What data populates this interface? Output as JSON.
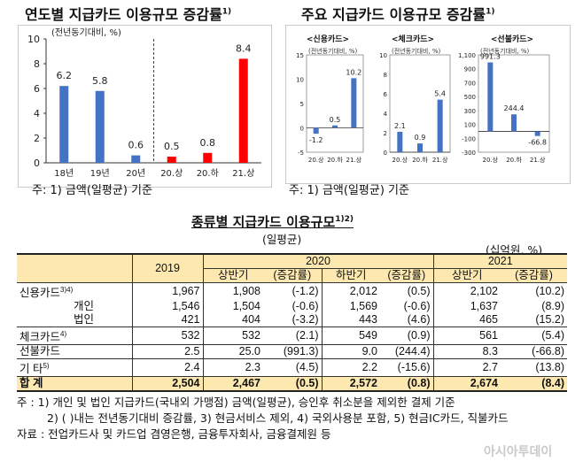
{
  "colors": {
    "blue": "#4472c4",
    "red": "#ff0000",
    "header_bg": "#fde9b0"
  },
  "left_chart": {
    "title": "연도별 지급카드 이용규모 증감률",
    "title_sup": "1)",
    "unit": "(전년동기대비, %)",
    "footnote": "주: 1) 금액(일평균) 기준"
  },
  "right_panel": {
    "title": "주요 지급카드 이용규모 증감률",
    "title_sup": "1)",
    "footnote": "주: 1) 금액(일평균) 기준",
    "unit": "(전년동기대비, %)"
  },
  "chart_data": [
    {
      "type": "bar",
      "title": "연도별 지급카드 이용규모 증감률",
      "categories": [
        "18년",
        "19년",
        "20년",
        "20.상",
        "20.하",
        "21.상"
      ],
      "values": [
        6.2,
        5.8,
        0.6,
        0.5,
        0.8,
        8.4
      ],
      "value_labels": [
        "6.2",
        "5.8",
        "0.6",
        "0.5",
        "0.8",
        "8.4"
      ],
      "bar_colors": [
        "#4472c4",
        "#4472c4",
        "#4472c4",
        "#ff0000",
        "#ff0000",
        "#ff0000"
      ],
      "ylim": [
        0,
        10
      ],
      "yticks": [
        "0",
        "2",
        "4",
        "6",
        "8",
        "10"
      ],
      "grid": false
    },
    {
      "type": "bar",
      "title": "<신용카드>",
      "categories": [
        "20.상",
        "20.하",
        "21.상"
      ],
      "values": [
        -1.2,
        0.5,
        10.2
      ],
      "value_labels": [
        "-1.2",
        "0.5",
        "10.2"
      ],
      "ylim": [
        -5,
        15
      ],
      "yticks": [
        "-5",
        "0",
        "5",
        "10",
        "15"
      ]
    },
    {
      "type": "bar",
      "title": "<체크카드>",
      "categories": [
        "20.상",
        "20.하",
        "21.상"
      ],
      "values": [
        2.1,
        0.9,
        5.4
      ],
      "value_labels": [
        "2.1",
        "0.9",
        "5.4"
      ],
      "ylim": [
        0,
        10
      ],
      "yticks": [
        "0",
        "2",
        "4",
        "6",
        "8",
        "10"
      ]
    },
    {
      "type": "bar",
      "title": "<선불카드>",
      "categories": [
        "20.상",
        "20.하",
        "21.상"
      ],
      "values": [
        991.3,
        244.4,
        -66.8
      ],
      "value_labels": [
        "991.3",
        "244.4",
        "-66.8"
      ],
      "ylim": [
        -300,
        1100
      ],
      "yticks": [
        "-300",
        "-100",
        "100",
        "300",
        "500",
        "700",
        "900",
        "1,100"
      ]
    }
  ],
  "table": {
    "title": "종류별 지급카드 이용규모",
    "title_sup": "1)2)",
    "subtitle": "(일평균)",
    "unit": "(십억원, %)",
    "header": {
      "y2019": "2019",
      "y2020": "2020",
      "y2021": "2021",
      "h1": "상반기",
      "change": "(증감률)",
      "h2": "하반기"
    },
    "rows": [
      {
        "label": "신용카드",
        "sup": "3)4)",
        "cells": [
          "1,967",
          "1,908",
          "(-1.2)",
          "2,012",
          "(0.5)",
          "2,102",
          "(10.2)"
        ]
      },
      {
        "label": "개인",
        "sup": "",
        "cells": [
          "1,546",
          "1,504",
          "(-0.6)",
          "1,569",
          "(-0.6)",
          "1,637",
          "(8.9)"
        ]
      },
      {
        "label": "법인",
        "sup": "",
        "cells": [
          "421",
          "404",
          "(-3.2)",
          "443",
          "(4.6)",
          "465",
          "(15.2)"
        ]
      },
      {
        "label": "체크카드",
        "sup": "4)",
        "cells": [
          "532",
          "532",
          "(2.1)",
          "549",
          "(0.9)",
          "561",
          "(5.4)"
        ]
      },
      {
        "label": "선불카드",
        "sup": "",
        "cells": [
          "2.5",
          "25.0",
          "(991.3)",
          "9.0",
          "(244.4)",
          "8.3",
          "(-66.8)"
        ]
      },
      {
        "label": "기 타",
        "sup": "5)",
        "cells": [
          "2.4",
          "2.3",
          "(4.5)",
          "2.2",
          "(-15.6)",
          "2.7",
          "(13.8)"
        ]
      },
      {
        "label": "합 계",
        "sup": "",
        "cells": [
          "2,504",
          "2,467",
          "(0.5)",
          "2,572",
          "(0.8)",
          "2,674",
          "(8.4)"
        ]
      }
    ],
    "notes": [
      "주 : 1) 개인 및 법인 지급카드(국내외 가맹점) 금액(일평균), 승인후 취소분을 제외한 결제 기준",
      "2) ( )내는 전년동기대비 증감률, 3) 현금서비스 제외, 4) 국외사용분 포함, 5) 현금IC카드, 직불카드",
      "자료 : 전업카드사 및 카드업 겸영은행, 금융투자회사, 금융결제원 등"
    ]
  },
  "watermark": "아시아투데이"
}
